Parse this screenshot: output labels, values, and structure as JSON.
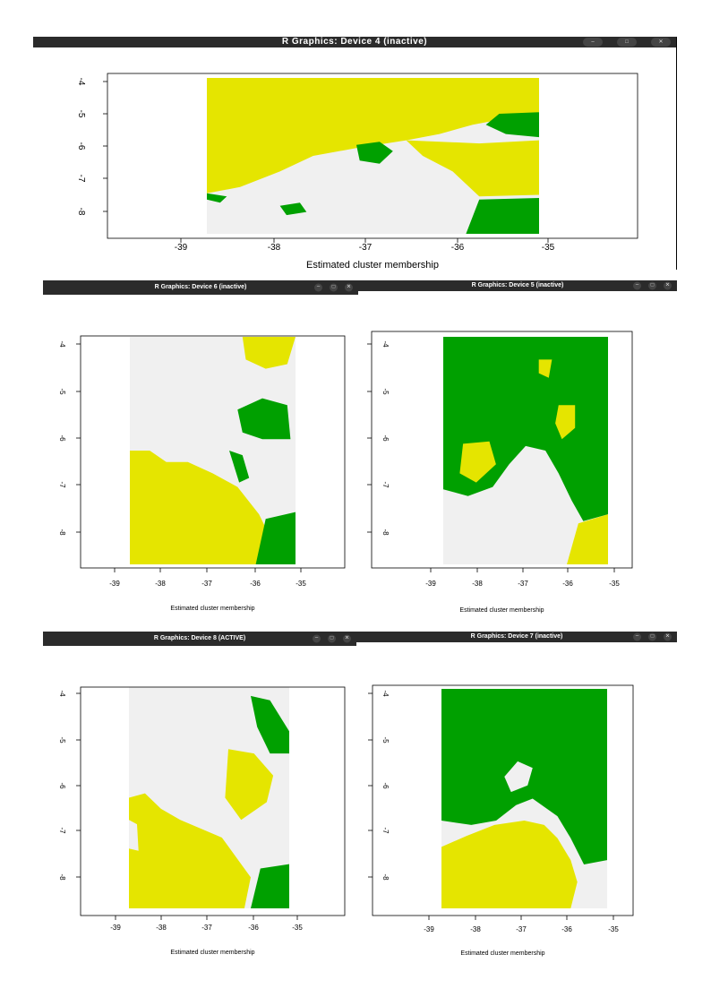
{
  "colors": {
    "yellow": "#e5e500",
    "green": "#00a000",
    "grey": "#f0f0f0",
    "titlebar": "#2b2b2b"
  },
  "windows": [
    {
      "id": "dev4",
      "title": "R Graphics: Device 4 (inactive)",
      "xlabel": "Estimated cluster membership",
      "x_ticks": [
        "-39",
        "-38",
        "-37",
        "-36",
        "-35"
      ],
      "y_ticks": [
        "-4",
        "-5",
        "-6",
        "-7",
        "-8"
      ],
      "controls": [
        "minimize-icon",
        "maximize-icon",
        "close-icon"
      ],
      "chart_data": {
        "type": "heatmap",
        "xlim": [
          -39.8,
          -34.2
        ],
        "ylim": [
          -8.8,
          -3.85
        ],
        "xlabel": "Estimated cluster membership",
        "dominant_regions": [
          "grey south-west",
          "yellow north",
          "green south-east and north-east"
        ]
      }
    },
    {
      "id": "dev6",
      "title": "R Graphics: Device 6 (inactive)",
      "xlabel": "Estimated cluster membership",
      "x_ticks": [
        "-39",
        "-38",
        "-37",
        "-36",
        "-35"
      ],
      "y_ticks": [
        "-4",
        "-5",
        "-6",
        "-7",
        "-8"
      ],
      "controls": [
        "minimize-icon",
        "maximize-icon",
        "close-icon"
      ],
      "chart_data": {
        "type": "heatmap",
        "xlim": [
          -39.8,
          -34.2
        ],
        "ylim": [
          -8.8,
          -3.85
        ],
        "xlabel": "Estimated cluster membership",
        "dominant_regions": [
          "grey north and east",
          "yellow south-west",
          "green south-east and mid-east"
        ]
      }
    },
    {
      "id": "dev5",
      "title": "R Graphics: Device 5 (inactive)",
      "xlabel": "Estimated cluster membership",
      "x_ticks": [
        "-39",
        "-38",
        "-37",
        "-36",
        "-35"
      ],
      "y_ticks": [
        "-4",
        "-5",
        "-6",
        "-7",
        "-8"
      ],
      "controls": [
        "minimize-icon",
        "maximize-icon",
        "close-icon"
      ],
      "chart_data": {
        "type": "heatmap",
        "xlim": [
          -39.8,
          -34.2
        ],
        "ylim": [
          -8.8,
          -3.85
        ],
        "xlabel": "Estimated cluster membership",
        "dominant_regions": [
          "green north",
          "grey south",
          "yellow patches centre and south-east"
        ]
      }
    },
    {
      "id": "dev8",
      "title": "R Graphics: Device 8 (ACTIVE)",
      "xlabel": "Estimated cluster membership",
      "x_ticks": [
        "-39",
        "-38",
        "-37",
        "-36",
        "-35"
      ],
      "y_ticks": [
        "-4",
        "-5",
        "-6",
        "-7",
        "-8"
      ],
      "controls": [
        "minimize-icon",
        "maximize-icon",
        "close-icon"
      ],
      "chart_data": {
        "type": "heatmap",
        "xlim": [
          -39.8,
          -34.2
        ],
        "ylim": [
          -8.8,
          -3.85
        ],
        "xlabel": "Estimated cluster membership",
        "dominant_regions": [
          "grey north",
          "yellow south-west and centre",
          "green south-east and north-east"
        ]
      }
    },
    {
      "id": "dev7",
      "title": "R Graphics: Device 7 (inactive)",
      "xlabel": "Estimated cluster membership",
      "x_ticks": [
        "-39",
        "-38",
        "-37",
        "-36",
        "-35"
      ],
      "y_ticks": [
        "-4",
        "-5",
        "-6",
        "-7",
        "-8"
      ],
      "controls": [
        "minimize-icon",
        "maximize-icon",
        "close-icon"
      ],
      "chart_data": {
        "type": "heatmap",
        "xlim": [
          -39.8,
          -34.2
        ],
        "ylim": [
          -8.8,
          -3.85
        ],
        "xlabel": "Estimated cluster membership",
        "dominant_regions": [
          "green north",
          "yellow south-west",
          "grey south-east and west"
        ]
      }
    }
  ]
}
